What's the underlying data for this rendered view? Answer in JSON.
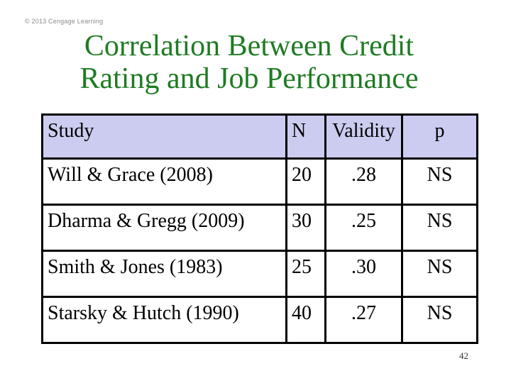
{
  "slide": {
    "copyright": "© 2013 Cengage Learning",
    "title_line1": "Correlation Between Credit",
    "title_line2": "Rating and Job Performance",
    "page_number": "42"
  },
  "table": {
    "columns": [
      "Study",
      "N",
      "Validity",
      "p"
    ],
    "rows": [
      {
        "study": "Will & Grace (2008)",
        "n": "20",
        "validity": ".28",
        "p": "NS"
      },
      {
        "study": "Dharma & Gregg (2009)",
        "n": "30",
        "validity": ".25",
        "p": "NS"
      },
      {
        "study": "Smith & Jones (1983)",
        "n": "25",
        "validity": ".30",
        "p": "NS"
      },
      {
        "study": "Starsky & Hutch (1990)",
        "n": "40",
        "validity": ".27",
        "p": "NS"
      }
    ]
  },
  "colors": {
    "title_green": "#1e7b22",
    "table_header_bg": "#ccccf0",
    "table_border": "#000000",
    "body_text": "#000000",
    "copyright_gray": "#8c8c8c",
    "page_number_gray": "#333333"
  }
}
